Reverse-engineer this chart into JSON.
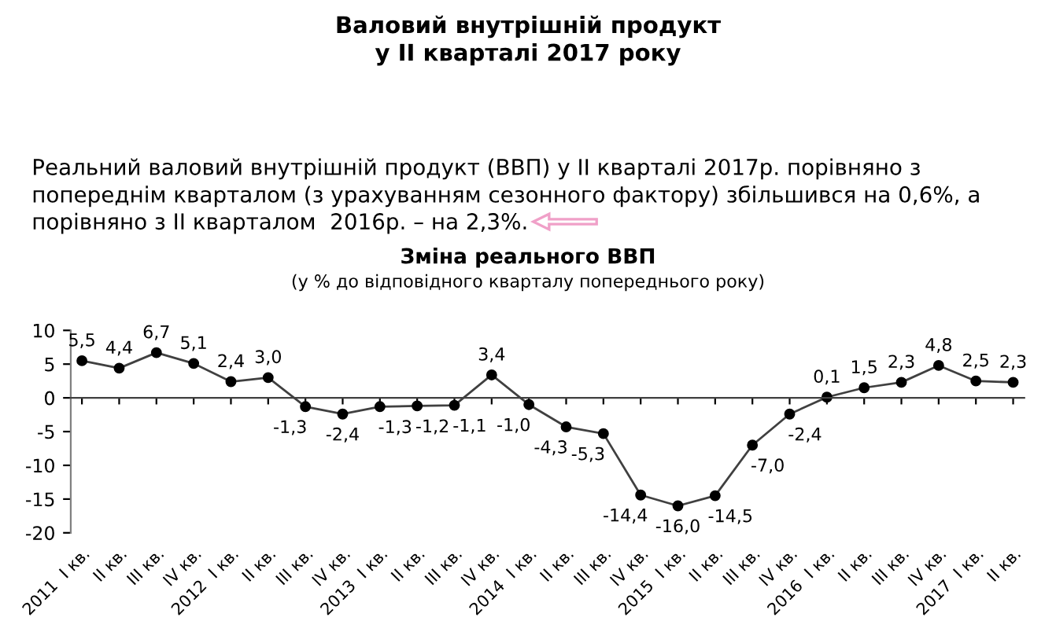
{
  "chart_data": {
    "type": "line",
    "title": "Зміна реального ВВП",
    "subtitle": "(у % до відповідного кварталу попереднього року)",
    "annotations": [
      "Валовий внутрішній продукт\nу II кварталі 2017 року",
      "Реальний валовий внутрішній продукт (ВВП) у II кварталі 2017р. порівняно з попереднім кварталом (з урахуванням сезонного фактору) збільшився на 0,6%, а порівняно з II кварталом  2016р. – на 2,3%."
    ],
    "categories": [
      "2011  I кв.",
      "II кв.",
      "III кв.",
      "IV кв.",
      "2012  I кв.",
      "II кв.",
      "III кв.",
      "IV кв.",
      "2013  I кв.",
      "II кв.",
      "III кв.",
      "IV кв.",
      "2014  I кв.",
      "II кв.",
      "III кв.",
      "IV кв.",
      "2015  I кв.",
      "II кв.",
      "III кв.",
      "IV кв.",
      "2016  I кв.",
      "II кв.",
      "III кв.",
      "IV кв.",
      "2017  I кв.",
      "II кв."
    ],
    "series": [
      {
        "color": "#404040",
        "values": [
          5.5,
          4.4,
          6.7,
          5.1,
          2.4,
          3.0,
          -1.3,
          -2.4,
          -1.3,
          -1.2,
          -1.1,
          3.4,
          -1.0,
          -4.3,
          -5.3,
          -14.4,
          -16.0,
          -14.5,
          -7.0,
          -2.4,
          0.1,
          1.5,
          2.3,
          4.8,
          2.5,
          2.3
        ],
        "value_labels": [
          "5,5",
          "4,4",
          "6,7",
          "5,1",
          "2,4",
          "3,0",
          "-1,3",
          "-2,4",
          "-1,3",
          "-1,2",
          "-1,1",
          "3,4",
          "-1,0",
          "-4,3",
          "-5,3",
          "-14,4",
          "-16,0",
          "-14,5",
          "-7,0",
          "-2,4",
          "0,1",
          "1,5",
          "2,3",
          "4,8",
          "2,5",
          "2,3"
        ]
      }
    ],
    "ylim": [
      -20,
      10
    ],
    "yticks": [
      10,
      5,
      0,
      -5,
      -10,
      -15,
      -20
    ],
    "legend": false,
    "marker": "circle",
    "line_style": "solid"
  }
}
